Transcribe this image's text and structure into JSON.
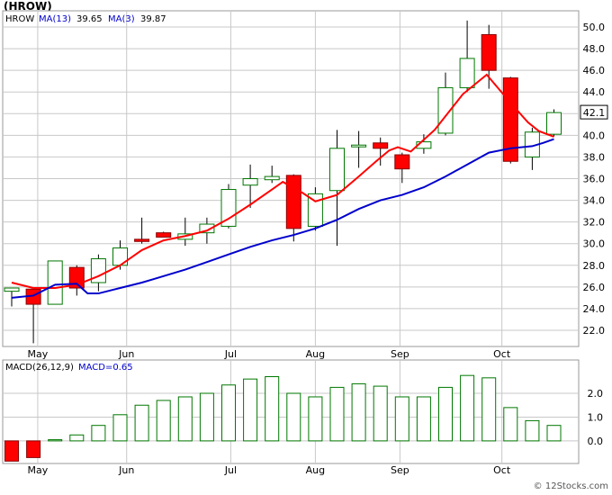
{
  "ticker_title": "(HROW)",
  "watermark": "© 12Stocks.com",
  "colors": {
    "up_candle": "#007700",
    "down_candle": "#ff0000",
    "ma_short": "#ff0000",
    "ma_long": "#0000cc",
    "macd_bar": "#007700",
    "grid": "#c8c8c8",
    "legend_blue": "#0000cc"
  },
  "chart_data": [
    {
      "type": "candlestick",
      "legend": {
        "symbol": "HROW",
        "ma13": {
          "label": "MA(13)",
          "value": "39.65"
        },
        "ma3": {
          "label": "MA(3)",
          "value": "39.87"
        }
      },
      "last_price_label": "42.1",
      "ylim": [
        20.5,
        51.5
      ],
      "y_ticks": [
        "22.0",
        "24.0",
        "26.0",
        "28.0",
        "30.0",
        "32.0",
        "34.0",
        "36.0",
        "38.0",
        "40.0",
        "42.0",
        "44.0",
        "46.0",
        "48.0",
        "50.0"
      ],
      "month_labels": [
        {
          "label": "May",
          "week": 1.2
        },
        {
          "label": "Jun",
          "week": 5.3
        },
        {
          "label": "Jul",
          "week": 10.1
        },
        {
          "label": "Aug",
          "week": 14.0
        },
        {
          "label": "Sep",
          "week": 17.9
        },
        {
          "label": "Oct",
          "week": 22.6
        }
      ],
      "candles": [
        {
          "week": 0,
          "open": 25.6,
          "high": 25.9,
          "low": 24.2,
          "close": 25.9
        },
        {
          "week": 1,
          "open": 25.8,
          "high": 25.9,
          "low": 20.8,
          "close": 24.4
        },
        {
          "week": 2,
          "open": 24.4,
          "high": 28.4,
          "low": 24.4,
          "close": 28.4
        },
        {
          "week": 3,
          "open": 27.8,
          "high": 28.0,
          "low": 25.2,
          "close": 25.9
        },
        {
          "week": 4,
          "open": 26.4,
          "high": 29.0,
          "low": 25.6,
          "close": 28.6
        },
        {
          "week": 5,
          "open": 28.0,
          "high": 30.3,
          "low": 27.6,
          "close": 29.6
        },
        {
          "week": 6,
          "open": 30.4,
          "high": 32.4,
          "low": 30.0,
          "close": 30.2
        },
        {
          "week": 7,
          "open": 31.0,
          "high": 31.1,
          "low": 30.6,
          "close": 30.6
        },
        {
          "week": 8,
          "open": 30.4,
          "high": 32.4,
          "low": 29.8,
          "close": 30.9
        },
        {
          "week": 9,
          "open": 31.0,
          "high": 32.4,
          "low": 30.0,
          "close": 31.8
        },
        {
          "week": 10,
          "open": 31.6,
          "high": 35.5,
          "low": 31.4,
          "close": 35.0
        },
        {
          "week": 11,
          "open": 35.4,
          "high": 37.3,
          "low": 33.3,
          "close": 36.0
        },
        {
          "week": 12,
          "open": 35.9,
          "high": 37.2,
          "low": 35.6,
          "close": 36.2
        },
        {
          "week": 13,
          "open": 36.3,
          "high": 36.4,
          "low": 30.2,
          "close": 31.4
        },
        {
          "week": 14,
          "open": 31.6,
          "high": 35.2,
          "low": 31.2,
          "close": 34.6
        },
        {
          "week": 15,
          "open": 34.9,
          "high": 40.5,
          "low": 29.8,
          "close": 38.8
        },
        {
          "week": 16,
          "open": 39.0,
          "high": 40.4,
          "low": 37.0,
          "close": 39.1
        },
        {
          "week": 17,
          "open": 39.3,
          "high": 39.8,
          "low": 37.2,
          "close": 38.8
        },
        {
          "week": 18,
          "open": 38.2,
          "high": 38.4,
          "low": 35.6,
          "close": 36.9
        },
        {
          "week": 19,
          "open": 38.8,
          "high": 40.1,
          "low": 38.3,
          "close": 39.4
        },
        {
          "week": 20,
          "open": 40.2,
          "high": 45.8,
          "low": 40.0,
          "close": 44.4
        },
        {
          "week": 21,
          "open": 44.4,
          "high": 50.6,
          "low": 44.0,
          "close": 47.1
        },
        {
          "week": 22,
          "open": 49.3,
          "high": 50.2,
          "low": 44.3,
          "close": 46.0
        },
        {
          "week": 23,
          "open": 45.3,
          "high": 45.4,
          "low": 37.4,
          "close": 37.6
        },
        {
          "week": 24,
          "open": 38.0,
          "high": 40.7,
          "low": 36.8,
          "close": 40.3
        },
        {
          "week": 25,
          "open": 40.1,
          "high": 42.4,
          "low": 39.9,
          "close": 42.1
        }
      ],
      "ma_long_values": [
        25.0,
        25.2,
        26.2,
        26.3,
        25.4,
        25.4,
        25.9,
        26.4,
        26.7,
        27.0,
        27.6,
        28.3,
        29.0,
        29.7,
        30.3,
        30.8,
        31.4,
        32.2,
        33.2,
        34.0,
        34.5,
        35.2,
        36.2,
        37.3,
        38.4,
        38.8,
        39.0,
        39.3,
        39.65
      ],
      "ma_long_weeks": [
        0,
        1,
        2,
        3,
        3.5,
        4,
        5,
        6,
        6.5,
        7,
        8,
        9,
        10,
        11,
        12,
        13,
        14,
        15,
        16,
        17,
        18,
        19,
        20,
        21,
        22,
        23,
        24,
        24.5,
        25
      ],
      "ma_short_values": [
        26.4,
        25.9,
        25.9,
        26.2,
        27.0,
        28.0,
        29.4,
        30.3,
        30.7,
        31.2,
        32.3,
        33.6,
        35.0,
        35.7,
        34.7,
        33.9,
        34.5,
        36.2,
        37.6,
        38.6,
        38.9,
        38.5,
        40.5,
        43.8,
        45.6,
        43.0,
        41.2,
        40.4,
        39.87
      ],
      "ma_short_weeks": [
        0,
        1,
        2,
        3,
        4,
        5,
        6,
        7,
        8,
        9,
        10,
        11,
        12,
        12.5,
        13.4,
        14,
        15,
        16,
        16.8,
        17.4,
        17.8,
        18.4,
        19.5,
        20.8,
        21.9,
        23,
        23.8,
        24.3,
        25
      ]
    },
    {
      "type": "bar",
      "label": "MACD(26,12,9)",
      "value_label": "MACD=0.65",
      "ylim": [
        -0.95,
        3.4
      ],
      "y_ticks": [
        "0.0",
        "1.0",
        "2.0"
      ],
      "weeks": [
        0,
        1,
        2,
        3,
        4,
        5,
        6,
        7,
        8,
        9,
        10,
        11,
        12,
        13,
        14,
        15,
        16,
        17,
        18,
        19,
        20,
        21,
        22,
        23,
        24,
        25
      ],
      "values": [
        -0.85,
        -0.7,
        0.05,
        0.25,
        0.65,
        1.1,
        1.5,
        1.7,
        1.85,
        2.0,
        2.35,
        2.6,
        2.7,
        2.0,
        1.85,
        2.25,
        2.4,
        2.3,
        1.85,
        1.85,
        2.25,
        2.75,
        2.65,
        1.4,
        0.85,
        0.65
      ]
    }
  ]
}
